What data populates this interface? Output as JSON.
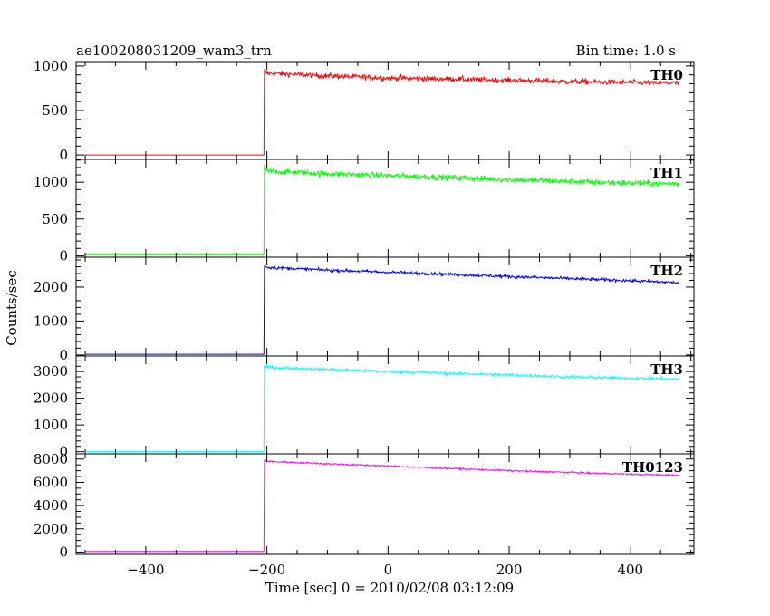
{
  "header": {
    "obs_id": "ae100208031209_wam3_trn",
    "bin_time": "Bin time: 1.0 s"
  },
  "axes": {
    "xlabel": "Time [sec] 0 = 2010/02/08 03:12:09",
    "ylabel": "Counts/sec"
  },
  "colors": {
    "TH0": "#ff0000",
    "TH1": "#00ff00",
    "TH2": "#0000ff",
    "TH3": "#00ffff",
    "TH0123": "#ff00ff"
  },
  "chart_data": [
    {
      "type": "line",
      "name": "TH0",
      "xlim": [
        -515,
        505
      ],
      "ylim": [
        -50,
        1050
      ],
      "yticks": [
        0,
        500,
        1000
      ],
      "ytick_labels": [
        "0",
        "500",
        "1000"
      ],
      "minor": 100,
      "noise": 30,
      "x": [
        -500,
        -205,
        -204,
        -200,
        -100,
        0,
        100,
        200,
        300,
        400,
        480
      ],
      "y": [
        0,
        0,
        940,
        920,
        890,
        865,
        855,
        840,
        825,
        815,
        810
      ]
    },
    {
      "type": "line",
      "name": "TH1",
      "xlim": [
        -515,
        505
      ],
      "ylim": [
        -20,
        1310
      ],
      "yticks": [
        0,
        500,
        1000
      ],
      "ytick_labels": [
        "0",
        "500",
        "1000"
      ],
      "minor": 100,
      "noise": 40,
      "x": [
        -500,
        -205,
        -204,
        -200,
        -100,
        0,
        100,
        200,
        300,
        400,
        480
      ],
      "y": [
        25,
        25,
        1200,
        1150,
        1115,
        1090,
        1065,
        1035,
        1010,
        990,
        980
      ]
    },
    {
      "type": "line",
      "name": "TH2",
      "xlim": [
        -515,
        505
      ],
      "ylim": [
        -30,
        2880
      ],
      "yticks": [
        0,
        1000,
        2000
      ],
      "ytick_labels": [
        "0",
        "1000",
        "2000"
      ],
      "minor": 200,
      "noise": 45,
      "x": [
        -500,
        -205,
        -204,
        -200,
        -100,
        0,
        100,
        200,
        300,
        400,
        480
      ],
      "y": [
        20,
        20,
        2620,
        2580,
        2500,
        2440,
        2380,
        2310,
        2250,
        2190,
        2130
      ]
    },
    {
      "type": "line",
      "name": "TH3",
      "xlim": [
        -515,
        505
      ],
      "ylim": [
        -80,
        3580
      ],
      "yticks": [
        0,
        1000,
        2000,
        3000
      ],
      "ytick_labels": [
        "0",
        "1000",
        "2000",
        "3000"
      ],
      "minor": 200,
      "noise": 55,
      "x": [
        -500,
        -205,
        -204,
        -200,
        -100,
        0,
        100,
        200,
        300,
        400,
        480
      ],
      "y": [
        0,
        0,
        3200,
        3160,
        3080,
        3000,
        2930,
        2870,
        2800,
        2750,
        2720
      ]
    },
    {
      "type": "line",
      "name": "TH0123",
      "xlim": [
        -515,
        505
      ],
      "ylim": [
        -200,
        8450
      ],
      "yticks": [
        0,
        2000,
        4000,
        6000,
        8000
      ],
      "ytick_labels": [
        "0",
        "2000",
        "4000",
        "6000",
        "8000"
      ],
      "minor": 500,
      "noise": 70,
      "x": [
        -500,
        -205,
        -204,
        -200,
        -100,
        0,
        100,
        200,
        300,
        400,
        480
      ],
      "y": [
        50,
        50,
        7900,
        7800,
        7600,
        7400,
        7200,
        7000,
        6850,
        6700,
        6600
      ],
      "xticks": [
        -400,
        -200,
        0,
        200,
        400
      ],
      "xtick_labels": [
        "−400",
        "−200",
        "0",
        "200",
        "400"
      ]
    }
  ]
}
